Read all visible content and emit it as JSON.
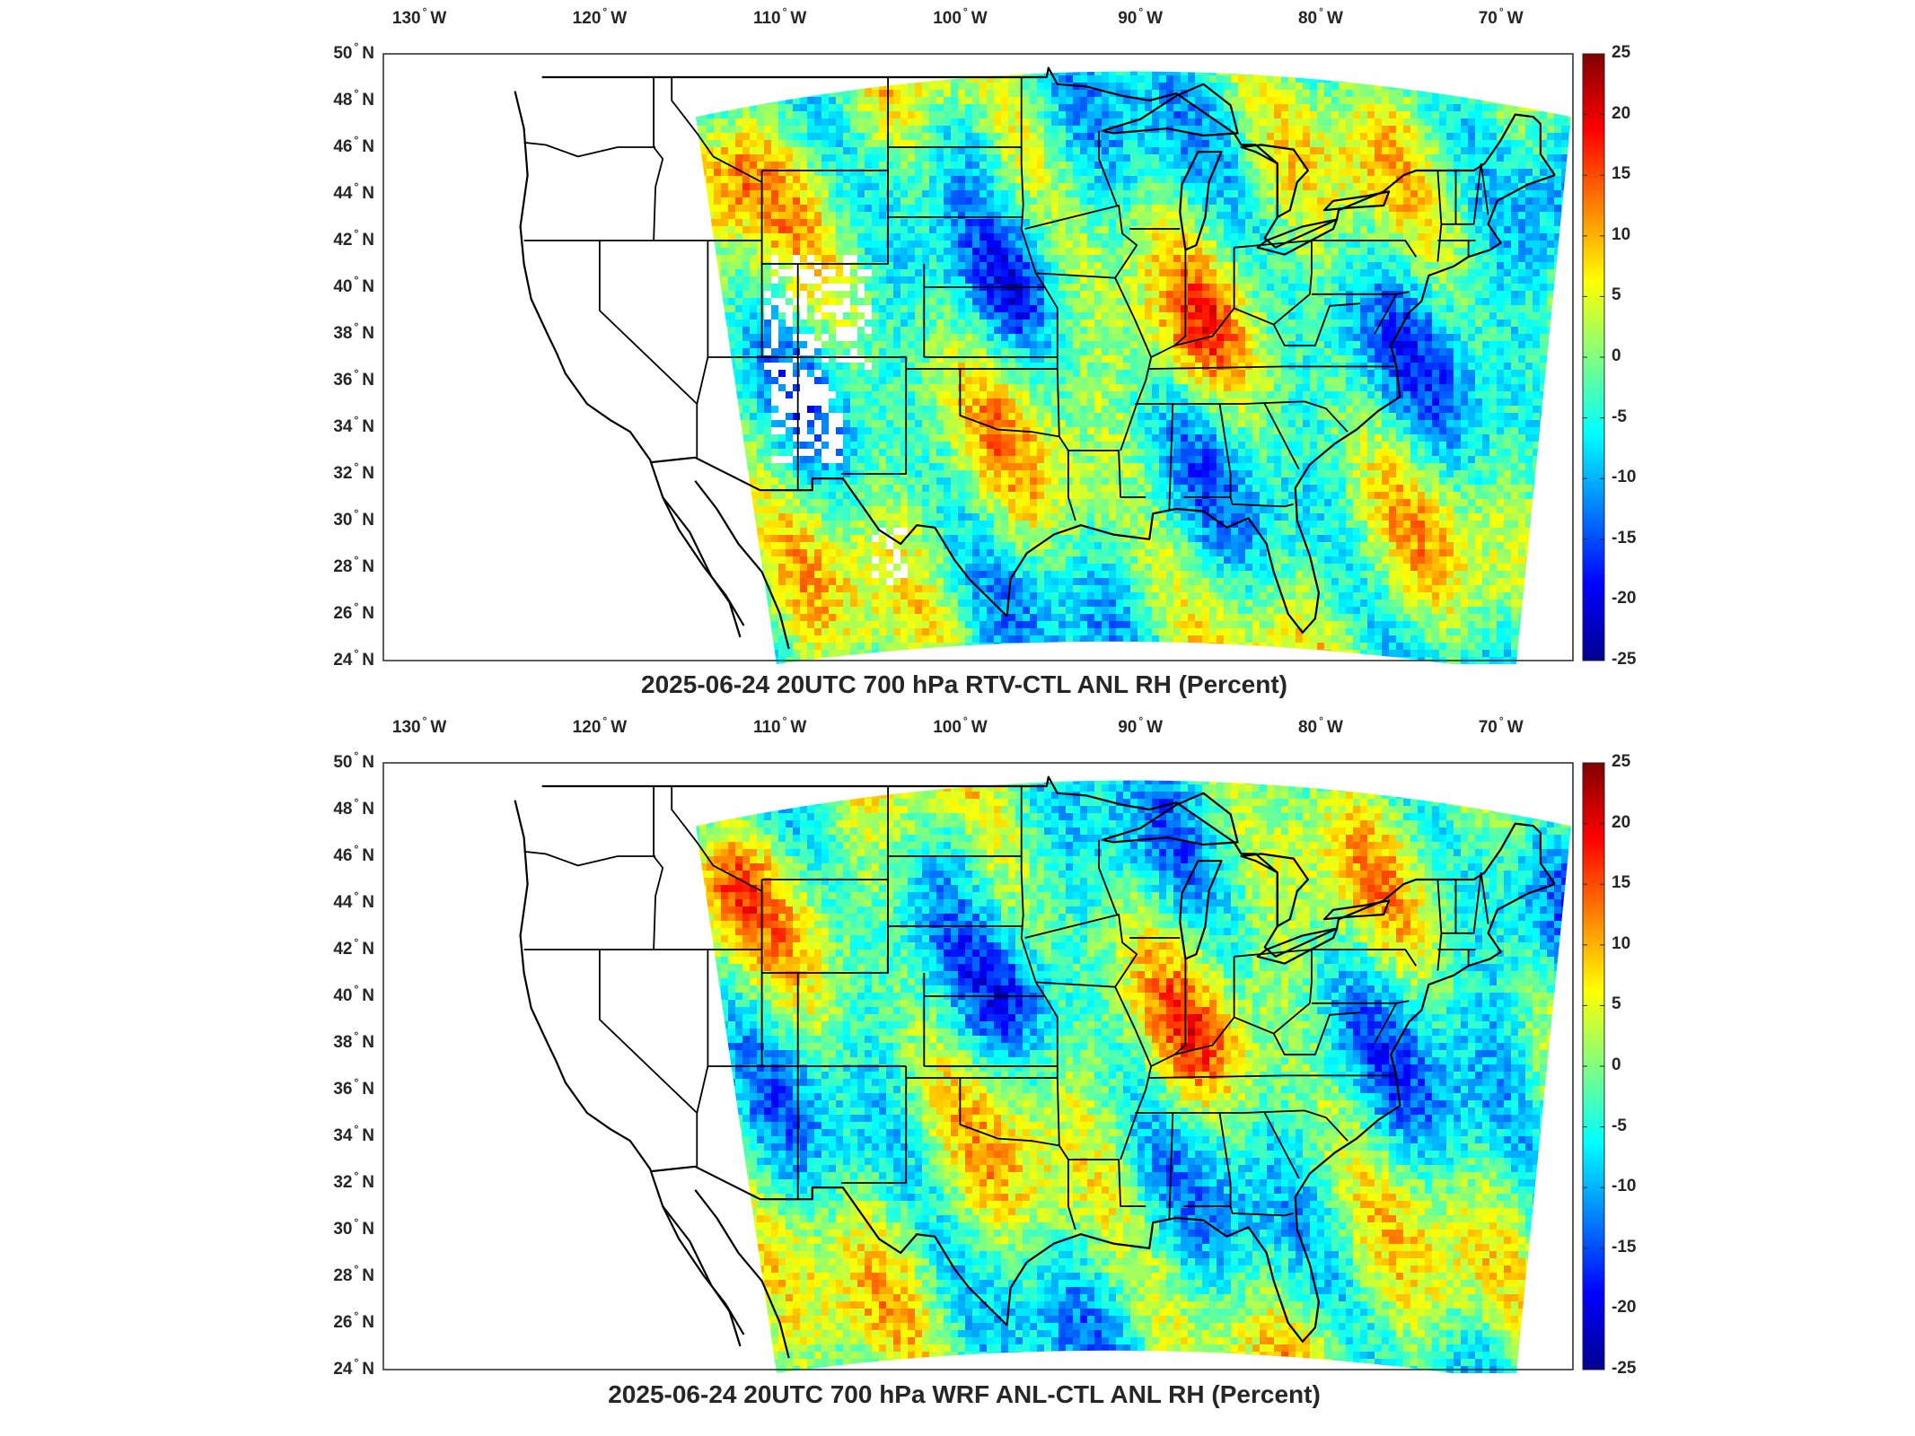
{
  "colorbar": {
    "ticks": [
      "25",
      "20",
      "15",
      "10",
      "5",
      "0",
      "-5",
      "-10",
      "-15",
      "-20",
      "-25"
    ],
    "colors": [
      "#00008f",
      "#0000ff",
      "#0080ff",
      "#00ffff",
      "#80ff80",
      "#ffff00",
      "#ff8000",
      "#ff0000",
      "#800000"
    ]
  },
  "lon_labels": [
    {
      "num": "130",
      "hem": "W",
      "lon": -130
    },
    {
      "num": "120",
      "hem": "W",
      "lon": -120
    },
    {
      "num": "110",
      "hem": "W",
      "lon": -110
    },
    {
      "num": "100",
      "hem": "W",
      "lon": -100
    },
    {
      "num": "90",
      "hem": "W",
      "lon": -90
    },
    {
      "num": "80",
      "hem": "W",
      "lon": -80
    },
    {
      "num": "70",
      "hem": "W",
      "lon": -70
    }
  ],
  "lat_labels": [
    {
      "num": "50",
      "hem": "N",
      "lat": 50
    },
    {
      "num": "48",
      "hem": "N",
      "lat": 48
    },
    {
      "num": "46",
      "hem": "N",
      "lat": 46
    },
    {
      "num": "44",
      "hem": "N",
      "lat": 44
    },
    {
      "num": "42",
      "hem": "N",
      "lat": 42
    },
    {
      "num": "40",
      "hem": "N",
      "lat": 40
    },
    {
      "num": "38",
      "hem": "N",
      "lat": 38
    },
    {
      "num": "36",
      "hem": "N",
      "lat": 36
    },
    {
      "num": "34",
      "hem": "N",
      "lat": 34
    },
    {
      "num": "32",
      "hem": "N",
      "lat": 32
    },
    {
      "num": "30",
      "hem": "N",
      "lat": 30
    },
    {
      "num": "28",
      "hem": "N",
      "lat": 28
    },
    {
      "num": "26",
      "hem": "N",
      "lat": 26
    },
    {
      "num": "24",
      "hem": "N",
      "lat": 24
    }
  ],
  "panels": [
    {
      "title": "2025-06-24 20UTC 700 hPa RTV-CTL ANL RH (Percent)"
    },
    {
      "title": "2025-06-24 20UTC 700 hPa WRF ANL-CTL ANL RH (Percent)"
    }
  ]
}
